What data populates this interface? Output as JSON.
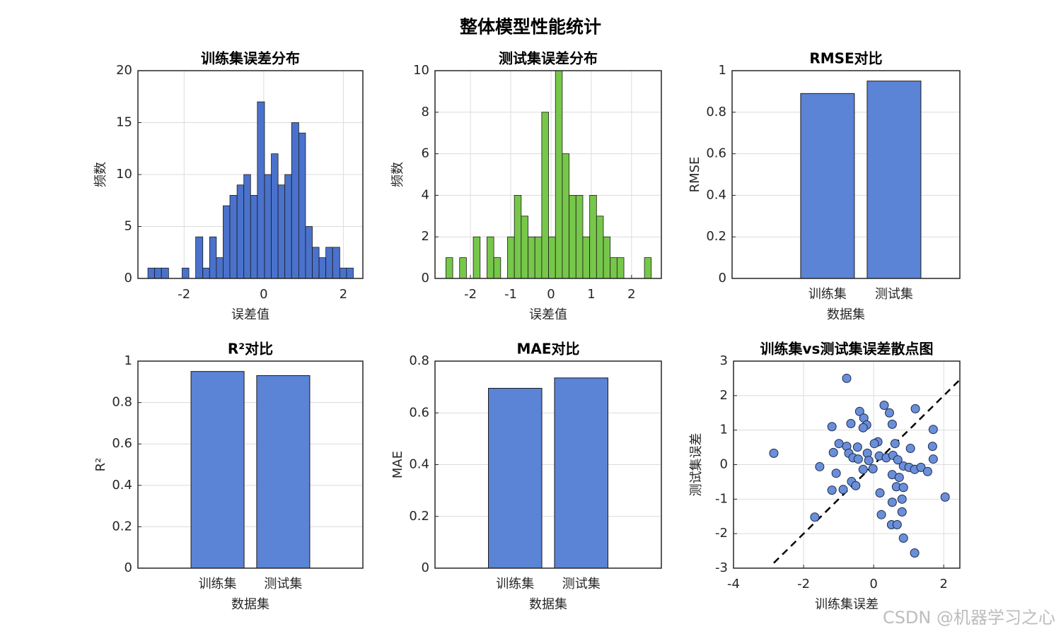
{
  "suptitle": "整体模型性能统计",
  "watermark": "CSDN @机器学习之心",
  "chart_data": [
    {
      "type": "histogram",
      "title": "训练集误差分布",
      "xlabel": "误差值",
      "ylabel": "频数",
      "color": "#4a72cc",
      "grid": true,
      "bins": [
        -2.91,
        -2.74,
        -2.57,
        -2.39,
        -2.22,
        -2.05,
        -1.88,
        -1.71,
        -1.53,
        -1.36,
        -1.19,
        -1.02,
        -0.85,
        -0.67,
        -0.5,
        -0.33,
        -0.16,
        0.02,
        0.19,
        0.36,
        0.53,
        0.7,
        0.88,
        1.05,
        1.22,
        1.39,
        1.56,
        1.73,
        1.91,
        2.08,
        2.25
      ],
      "values": [
        1,
        1,
        1,
        0,
        0,
        1,
        0,
        4,
        1,
        4,
        2,
        7,
        8,
        9,
        10,
        8,
        17,
        10,
        12,
        9,
        10,
        15,
        14,
        5,
        3,
        2,
        3,
        3,
        1,
        1
      ],
      "xlim": [
        -3.16,
        2.49
      ],
      "xticks": [
        -2,
        0,
        2
      ],
      "ylim": [
        0,
        20
      ],
      "yticks": [
        0,
        5,
        10,
        15,
        20
      ]
    },
    {
      "type": "histogram",
      "title": "测试集误差分布",
      "xlabel": "误差值",
      "ylabel": "频数",
      "color": "#77c74a",
      "grid": true,
      "bins": [
        -2.61,
        -2.44,
        -2.27,
        -2.1,
        -1.93,
        -1.76,
        -1.59,
        -1.42,
        -1.25,
        -1.08,
        -0.91,
        -0.74,
        -0.57,
        -0.4,
        -0.23,
        -0.06,
        0.11,
        0.28,
        0.45,
        0.62,
        0.79,
        0.96,
        1.13,
        1.3,
        1.47,
        1.64,
        1.81,
        1.98,
        2.15,
        2.32,
        2.49
      ],
      "values": [
        1,
        0,
        1,
        0,
        2,
        0,
        2,
        1,
        0,
        2,
        4,
        3,
        2,
        2,
        8,
        2,
        10,
        6,
        4,
        4,
        2,
        4,
        3,
        2,
        1,
        1,
        0,
        0,
        0,
        1
      ],
      "xlim": [
        -2.88,
        2.74
      ],
      "xticks": [
        -2,
        -1,
        0,
        1,
        2
      ],
      "ylim": [
        0,
        10
      ],
      "yticks": [
        0,
        2,
        4,
        6,
        8,
        10
      ]
    },
    {
      "type": "bar",
      "title": "RMSE对比",
      "xlabel": "数据集",
      "ylabel": "RMSE",
      "color": "#5b83d6",
      "grid": true,
      "categories": [
        "训练集",
        "测试集"
      ],
      "values": [
        0.89,
        0.95
      ],
      "ylim": [
        0,
        1
      ],
      "yticks": [
        0,
        0.2,
        0.4,
        0.6,
        0.8,
        1
      ]
    },
    {
      "type": "bar",
      "title": "R²对比",
      "xlabel": "数据集",
      "ylabel": "R²",
      "color": "#5b83d6",
      "grid": true,
      "categories": [
        "训练集",
        "测试集"
      ],
      "values": [
        0.95,
        0.93
      ],
      "ylim": [
        0,
        1
      ],
      "yticks": [
        0,
        0.2,
        0.4,
        0.6,
        0.8,
        1
      ]
    },
    {
      "type": "bar",
      "title": "MAE对比",
      "xlabel": "数据集",
      "ylabel": "MAE",
      "color": "#5b83d6",
      "grid": true,
      "categories": [
        "训练集",
        "测试集"
      ],
      "values": [
        0.695,
        0.735
      ],
      "ylim": [
        0,
        0.8
      ],
      "yticks": [
        0,
        0.2,
        0.4,
        0.6,
        0.8
      ]
    },
    {
      "type": "scatter",
      "title": "训练集vs测试集误差散点图",
      "xlabel": "训练集误差",
      "ylabel": "测试集误差",
      "color": "#6a8fd8",
      "grid": true,
      "x": [
        -2.85,
        -0.77,
        -0.4,
        0.3,
        1.19,
        -1.19,
        -0.65,
        -0.28,
        -0.2,
        -0.3,
        0.45,
        0.53,
        1.7,
        -0.99,
        -0.77,
        -0.46,
        0.12,
        0.02,
        0.61,
        1.05,
        1.68,
        -1.15,
        -0.71,
        -0.59,
        -0.44,
        -0.18,
        -0.14,
        0.16,
        0.36,
        0.55,
        0.69,
        1.7,
        -1.54,
        -1.07,
        -0.3,
        -0.02,
        0.85,
        1.01,
        1.17,
        1.35,
        1.54,
        -0.63,
        0.53,
        0.73,
        0.65,
        0.85,
        -1.19,
        -0.87,
        -0.51,
        0.18,
        0.81,
        2.04,
        0.53,
        0.22,
        0.81,
        -1.68,
        0.51,
        0.67,
        0.85,
        1.17
      ],
      "values": [
        0.33,
        2.5,
        1.54,
        1.72,
        1.62,
        1.1,
        1.19,
        1.35,
        1.15,
        1.07,
        1.5,
        1.17,
        1.02,
        0.61,
        0.53,
        0.51,
        0.66,
        0.61,
        0.61,
        0.47,
        0.53,
        0.35,
        0.33,
        0.2,
        0.16,
        0.33,
        0.12,
        0.25,
        0.2,
        0.27,
        0.14,
        0.16,
        -0.06,
        -0.25,
        -0.14,
        -0.12,
        -0.04,
        -0.08,
        -0.14,
        -0.08,
        -0.2,
        -0.49,
        -0.29,
        -0.37,
        -0.64,
        -0.66,
        -0.74,
        -0.72,
        -0.61,
        -0.82,
        -1.0,
        -0.94,
        -1.09,
        -1.45,
        -1.37,
        -1.52,
        -1.74,
        -1.74,
        -2.13,
        -2.56
      ],
      "reference_line": {
        "x": [
          -2.85,
          2.46
        ],
        "y": [
          -2.85,
          2.46
        ],
        "color": "#000000"
      },
      "xlim": [
        -4,
        2.46
      ],
      "xticks": [
        -4,
        -2,
        0,
        2
      ],
      "ylim": [
        -3,
        3
      ],
      "yticks": [
        -3,
        -2,
        -1,
        0,
        1,
        2,
        3
      ]
    }
  ]
}
